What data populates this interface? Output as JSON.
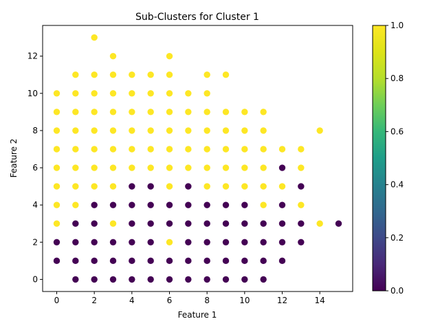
{
  "chart_data": {
    "type": "scatter",
    "title": "Sub-Clusters for Cluster 1",
    "xlabel": "Feature 1",
    "ylabel": "Feature 2",
    "xlim": [
      -0.75,
      15.75
    ],
    "ylim": [
      -0.65,
      13.65
    ],
    "x_ticks": [
      "0",
      "2",
      "4",
      "6",
      "8",
      "10",
      "12",
      "14"
    ],
    "y_ticks": [
      "0",
      "2",
      "4",
      "6",
      "8",
      "10",
      "12"
    ],
    "colormap": "viridis",
    "colorbar_range": [
      0.0,
      1.0
    ],
    "colorbar_ticks": [
      "0.0",
      "0.2",
      "0.4",
      "0.6",
      "0.8",
      "1.0"
    ],
    "grid": false,
    "legend": "none",
    "colors": {
      "class_0": "#440154",
      "class_1": "#fde725"
    },
    "points_by_row": [
      {
        "y": 0,
        "class_0": [
          1,
          2,
          3,
          4,
          5,
          6,
          7,
          8,
          9,
          10,
          11
        ],
        "class_1": []
      },
      {
        "y": 1,
        "class_0": [
          0,
          1,
          2,
          3,
          4,
          5,
          6,
          7,
          8,
          9,
          10,
          11,
          12
        ],
        "class_1": []
      },
      {
        "y": 2,
        "class_0": [
          0,
          1,
          2,
          3,
          4,
          5,
          7,
          8,
          9,
          10,
          11,
          12,
          13
        ],
        "class_1": [
          6
        ]
      },
      {
        "y": 3,
        "class_0": [
          1,
          2,
          4,
          5,
          6,
          7,
          8,
          9,
          10,
          11,
          12,
          13,
          15
        ],
        "class_1": [
          0,
          3,
          14
        ]
      },
      {
        "y": 4,
        "class_0": [
          2,
          3,
          4,
          5,
          6,
          7,
          8,
          9,
          10,
          12
        ],
        "class_1": [
          0,
          1,
          11,
          13
        ]
      },
      {
        "y": 5,
        "class_0": [
          4,
          5,
          7,
          13
        ],
        "class_1": [
          0,
          1,
          2,
          3,
          6,
          8,
          9,
          10,
          11,
          12
        ]
      },
      {
        "y": 6,
        "class_0": [
          12
        ],
        "class_1": [
          0,
          1,
          2,
          3,
          4,
          5,
          6,
          7,
          8,
          9,
          10,
          11,
          13
        ]
      },
      {
        "y": 7,
        "class_0": [],
        "class_1": [
          0,
          1,
          2,
          3,
          4,
          5,
          6,
          7,
          8,
          9,
          10,
          11,
          12,
          13
        ]
      },
      {
        "y": 8,
        "class_0": [],
        "class_1": [
          0,
          1,
          2,
          3,
          4,
          5,
          6,
          7,
          8,
          9,
          10,
          11,
          14
        ]
      },
      {
        "y": 9,
        "class_0": [],
        "class_1": [
          0,
          1,
          2,
          3,
          4,
          5,
          6,
          7,
          8,
          9,
          10,
          11
        ]
      },
      {
        "y": 10,
        "class_0": [],
        "class_1": [
          0,
          1,
          2,
          3,
          4,
          5,
          6,
          7,
          8
        ]
      },
      {
        "y": 11,
        "class_0": [],
        "class_1": [
          1,
          2,
          3,
          4,
          5,
          6,
          8,
          9
        ]
      },
      {
        "y": 12,
        "class_0": [],
        "class_1": [
          3,
          6
        ]
      },
      {
        "y": 13,
        "class_0": [],
        "class_1": [
          2
        ]
      }
    ]
  }
}
